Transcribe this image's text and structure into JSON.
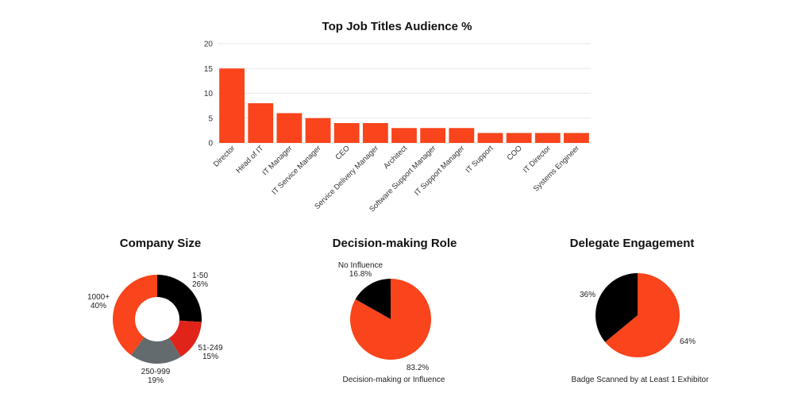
{
  "chart_data": [
    {
      "type": "bar",
      "title": "Top Job Titles Audience %",
      "categories": [
        "Director",
        "Head of IT",
        "IT Manager",
        "IT Service Manager",
        "CEO",
        "Service Delivery Manager",
        "Architect",
        "Software Support Manager",
        "IT Support Manager",
        "IT Support",
        "COO",
        "IT Director",
        "Systems Engineer"
      ],
      "values": [
        15,
        8,
        6,
        5,
        4,
        4,
        3,
        3,
        3,
        2,
        2,
        2,
        2
      ],
      "ylim": [
        0,
        20
      ],
      "yticks": [
        0,
        5,
        10,
        15,
        20
      ],
      "grid": true,
      "color": "#f9441c"
    },
    {
      "type": "pie",
      "variant": "donut",
      "title": "Company Size",
      "slices": [
        {
          "name": "1-50",
          "value": 26,
          "label": "26%",
          "color": "#000000"
        },
        {
          "name": "51-249",
          "value": 15,
          "label": "15%",
          "color": "#e02419"
        },
        {
          "name": "250-999",
          "value": 19,
          "label": "19%",
          "color": "#636b6f"
        },
        {
          "name": "1000+",
          "value": 40,
          "label": "40%",
          "color": "#f9441c"
        }
      ]
    },
    {
      "type": "pie",
      "title": "Decision-making Role",
      "slices": [
        {
          "name": "No Influence",
          "value": 16.8,
          "label": "16.8%",
          "color": "#000000"
        },
        {
          "name": "Decision-making or Influence",
          "value": 83.2,
          "label": "83.2%",
          "color": "#f9441c"
        }
      ]
    },
    {
      "type": "pie",
      "title": "Delegate Engagement",
      "slices": [
        {
          "name": "Badge Scanned by at Least 1 Exhibitor",
          "value": 64,
          "label": "64%",
          "color": "#f9441c"
        },
        {
          "name": "",
          "value": 36,
          "label": "36%",
          "color": "#000000"
        }
      ]
    }
  ]
}
